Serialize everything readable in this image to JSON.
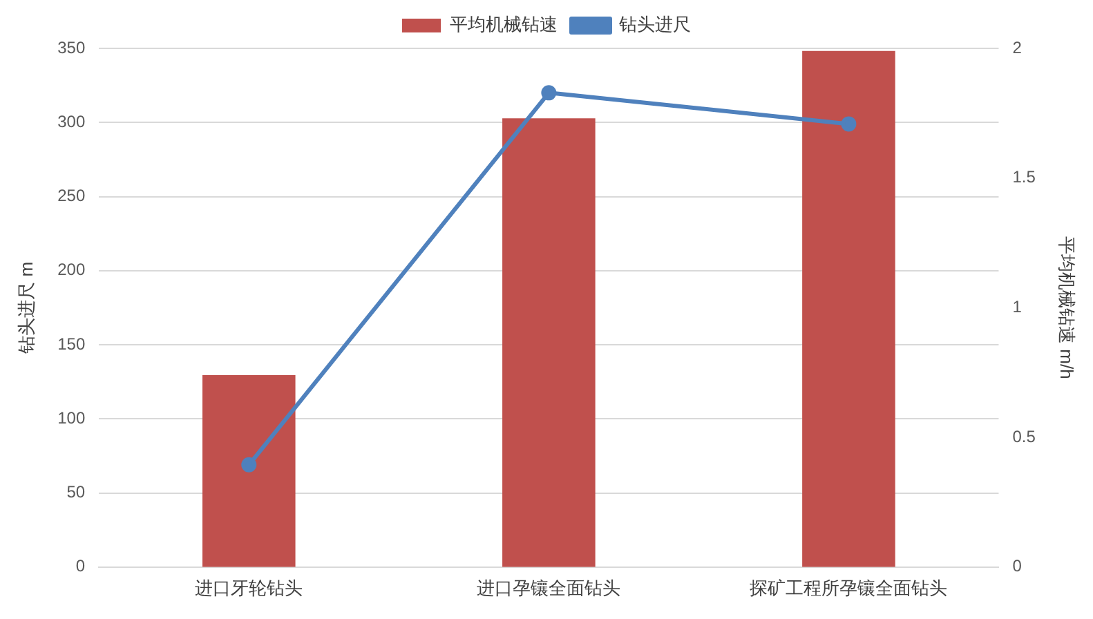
{
  "chart_data": {
    "type": "bar",
    "categories": [
      "进口牙轮钻头",
      "进口孕镶全面钻头",
      "探矿工程所孕镶全面钻头"
    ],
    "series": [
      {
        "name": "平均机械钻速",
        "axis": "y2",
        "color": "#c0504d",
        "values": [
          0.74,
          1.73,
          1.99
        ]
      },
      {
        "name": "钻头进尺",
        "type": "line",
        "axis": "y",
        "color": "#4f81bd",
        "values": [
          69,
          320,
          299
        ],
        "marker": "circle"
      }
    ],
    "ylabel": "钻头进尺 m",
    "y2label": "平均机械钻速 m/h",
    "ylim": [
      0,
      350
    ],
    "yticks": [
      0,
      50,
      100,
      150,
      200,
      250,
      300,
      350
    ],
    "y2lim": [
      0,
      2
    ],
    "y2ticks": [
      0,
      0.5,
      1,
      1.5,
      2
    ],
    "grid": "y",
    "legend": "top"
  }
}
